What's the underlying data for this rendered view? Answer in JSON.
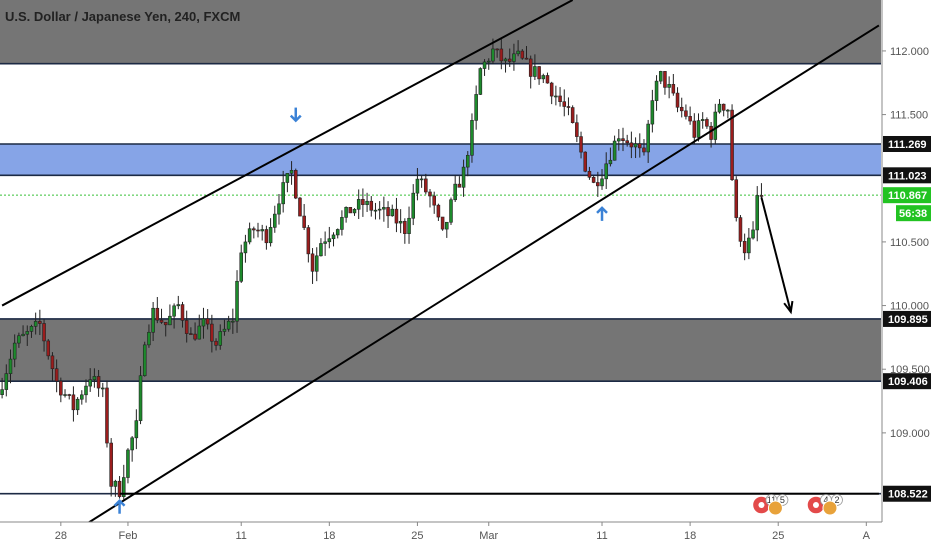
{
  "chart_data": {
    "type": "candlestick",
    "title": "U.S. Dollar / Japanese Yen, 240, FXCM",
    "ylim": [
      108.3,
      112.4
    ],
    "y_ticks": [
      {
        "value": 112.0,
        "label": "112.000"
      },
      {
        "value": 111.5,
        "label": "111.500"
      },
      {
        "value": 110.5,
        "label": "110.500"
      },
      {
        "value": 110.0,
        "label": "110.000"
      },
      {
        "value": 109.5,
        "label": "109.500"
      },
      {
        "value": 109.0,
        "label": "109.000"
      }
    ],
    "x_ticks": [
      {
        "label": "28",
        "index": 14
      },
      {
        "label": "Feb",
        "index": 30
      },
      {
        "label": "11",
        "index": 57
      },
      {
        "label": "18",
        "index": 78
      },
      {
        "label": "25",
        "index": 99
      },
      {
        "label": "Mar",
        "index": 116
      },
      {
        "label": "11",
        "index": 143
      },
      {
        "label": "18",
        "index": 164
      },
      {
        "label": "25",
        "index": 185
      },
      {
        "label": "A",
        "index": 206
      }
    ],
    "bar_count": 210,
    "zones": [
      {
        "from": 111.9,
        "to": 112.4,
        "color": "#6e6e6e"
      },
      {
        "from": 111.023,
        "to": 111.269,
        "color": "#7f9fe6"
      },
      {
        "from": 109.406,
        "to": 109.895,
        "color": "#6e6e6e"
      }
    ],
    "level_lines": [
      111.9,
      111.269,
      111.023,
      109.895,
      109.406,
      108.522
    ],
    "trend_lines": [
      {
        "x1": 0,
        "y1": 110.0,
        "x2": 136,
        "y2": 112.4
      },
      {
        "x1": 16,
        "y1": 108.2,
        "x2": 209,
        "y2": 112.2
      },
      {
        "x1": 28,
        "y1": 108.522,
        "x2": 209,
        "y2": 108.522
      }
    ],
    "current_price": {
      "value": 110.867,
      "label": "110.867",
      "countdown": "56:38"
    },
    "price_tags": [
      {
        "value": 111.269,
        "label": "111.269"
      },
      {
        "value": 111.023,
        "label": "111.023"
      },
      {
        "value": 109.895,
        "label": "109.895"
      },
      {
        "value": 109.406,
        "label": "109.406"
      },
      {
        "value": 108.522,
        "label": "108.522"
      }
    ],
    "arrows_up": [
      {
        "index": 28,
        "value": 108.42
      },
      {
        "index": 143,
        "value": 110.72
      }
    ],
    "arrows_down": [
      {
        "index": 70,
        "value": 111.5
      }
    ],
    "projection": {
      "x1": 181,
      "y1": 110.85,
      "x2": 188,
      "y2": 109.95
    },
    "events": [
      {
        "index": 181,
        "badges": [
          "11",
          "5"
        ]
      },
      {
        "index": 194,
        "badges": [
          "4",
          "2"
        ]
      }
    ],
    "anchors": [
      [
        0,
        109.3
      ],
      [
        4,
        109.7
      ],
      [
        10,
        109.85
      ],
      [
        14,
        109.4
      ],
      [
        18,
        109.2
      ],
      [
        22,
        109.45
      ],
      [
        25,
        109.3
      ],
      [
        27,
        108.6
      ],
      [
        29,
        108.55
      ],
      [
        31,
        108.85
      ],
      [
        33,
        109.05
      ],
      [
        35,
        109.75
      ],
      [
        37,
        109.95
      ],
      [
        40,
        109.85
      ],
      [
        43,
        110.0
      ],
      [
        46,
        109.75
      ],
      [
        49,
        109.85
      ],
      [
        52,
        109.7
      ],
      [
        56,
        109.9
      ],
      [
        58,
        110.45
      ],
      [
        61,
        110.6
      ],
      [
        64,
        110.55
      ],
      [
        67,
        110.85
      ],
      [
        70,
        111.05
      ],
      [
        72,
        110.75
      ],
      [
        75,
        110.3
      ],
      [
        77,
        110.5
      ],
      [
        80,
        110.6
      ],
      [
        84,
        110.75
      ],
      [
        87,
        110.8
      ],
      [
        90,
        110.75
      ],
      [
        94,
        110.7
      ],
      [
        97,
        110.6
      ],
      [
        100,
        111.0
      ],
      [
        103,
        110.85
      ],
      [
        106,
        110.55
      ],
      [
        109,
        110.9
      ],
      [
        111,
        111.05
      ],
      [
        113,
        111.4
      ],
      [
        115,
        111.85
      ],
      [
        118,
        112.0
      ],
      [
        121,
        111.9
      ],
      [
        124,
        111.95
      ],
      [
        127,
        111.85
      ],
      [
        130,
        111.8
      ],
      [
        133,
        111.65
      ],
      [
        136,
        111.5
      ],
      [
        138,
        111.3
      ],
      [
        140,
        111.1
      ],
      [
        142,
        110.95
      ],
      [
        144,
        111.05
      ],
      [
        146,
        111.2
      ],
      [
        148,
        111.35
      ],
      [
        150,
        111.3
      ],
      [
        152,
        111.25
      ],
      [
        154,
        111.15
      ],
      [
        156,
        111.65
      ],
      [
        158,
        111.8
      ],
      [
        160,
        111.7
      ],
      [
        162,
        111.55
      ],
      [
        164,
        111.5
      ],
      [
        166,
        111.35
      ],
      [
        168,
        111.45
      ],
      [
        170,
        111.35
      ],
      [
        172,
        111.6
      ],
      [
        174,
        111.55
      ],
      [
        175,
        111.0
      ],
      [
        176,
        110.65
      ],
      [
        178,
        110.45
      ],
      [
        180,
        110.55
      ],
      [
        181,
        110.85
      ]
    ]
  }
}
